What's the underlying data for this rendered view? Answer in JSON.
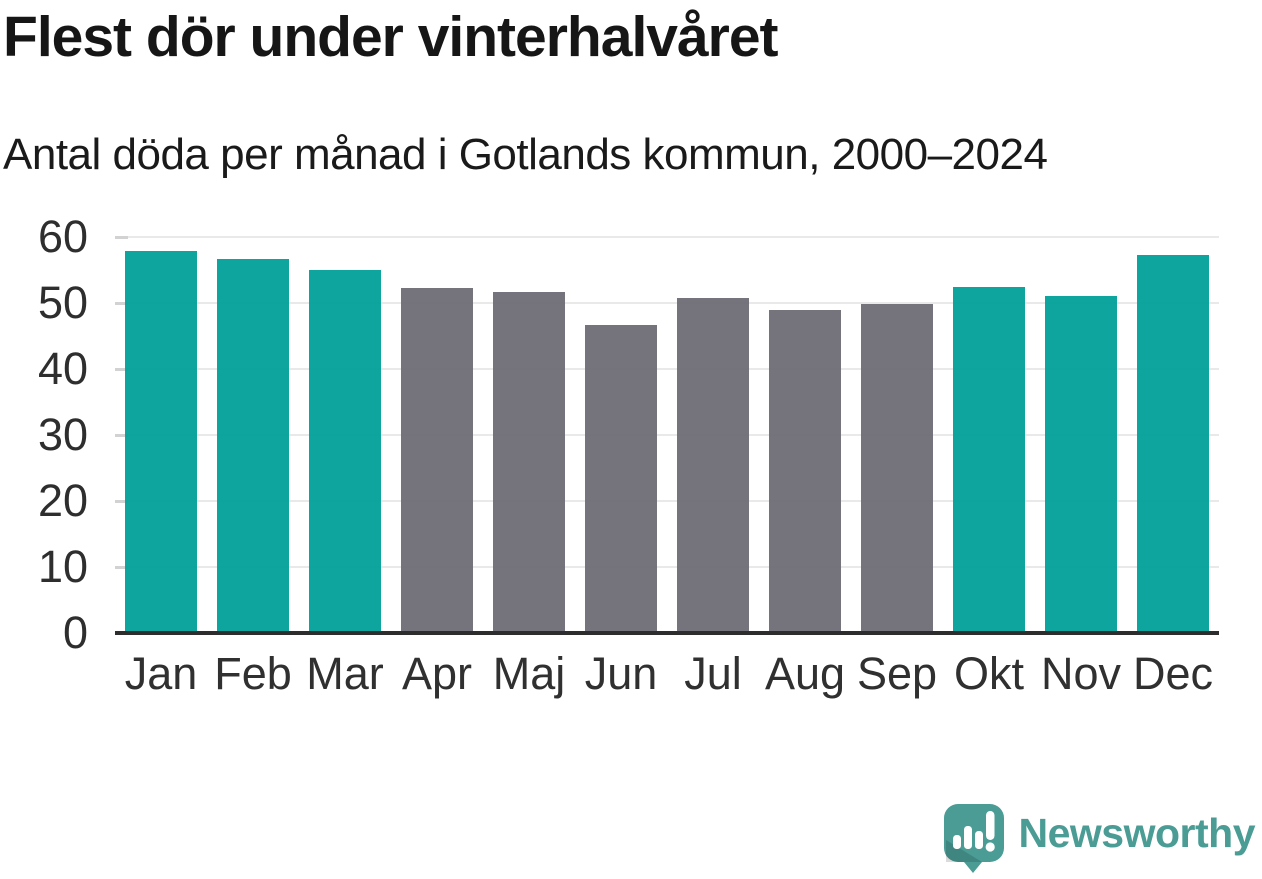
{
  "header": {
    "title": "Flest dör under vinterhalvåret",
    "subtitle": "Antal döda per månad i Gotlands kommun, 2000–2024"
  },
  "chart_data": {
    "type": "bar",
    "title": "Flest dör under vinterhalvåret",
    "subtitle": "Antal döda per månad i Gotlands kommun, 2000–2024",
    "categories": [
      "Jan",
      "Feb",
      "Mar",
      "Apr",
      "Maj",
      "Jun",
      "Jul",
      "Aug",
      "Sep",
      "Okt",
      "Nov",
      "Dec"
    ],
    "values": [
      57.9,
      56.7,
      55.0,
      52.3,
      51.6,
      46.6,
      50.7,
      49.0,
      49.8,
      52.5,
      51.0,
      57.2
    ],
    "winter_months": [
      true,
      true,
      true,
      false,
      false,
      false,
      false,
      false,
      false,
      true,
      true,
      true
    ],
    "xlabel": "",
    "ylabel": "",
    "ylim": [
      0,
      60
    ],
    "yticks": [
      0,
      10,
      20,
      30,
      40,
      50,
      60
    ],
    "grid": true,
    "legend": "none",
    "colors": {
      "winter_bar": "#00A099",
      "summer_bar": "#6E6C75",
      "gridline": "#E9E9E9",
      "grid_tick": "#D2D2D2",
      "axis_line": "#2D2D2D",
      "tick_label": "#2E2E2E"
    }
  },
  "branding": {
    "name": "Newsworthy",
    "logo_color": "#4A9C95",
    "logo_icon": "newsworthy-speech-bubble-bar-chart-icon"
  }
}
